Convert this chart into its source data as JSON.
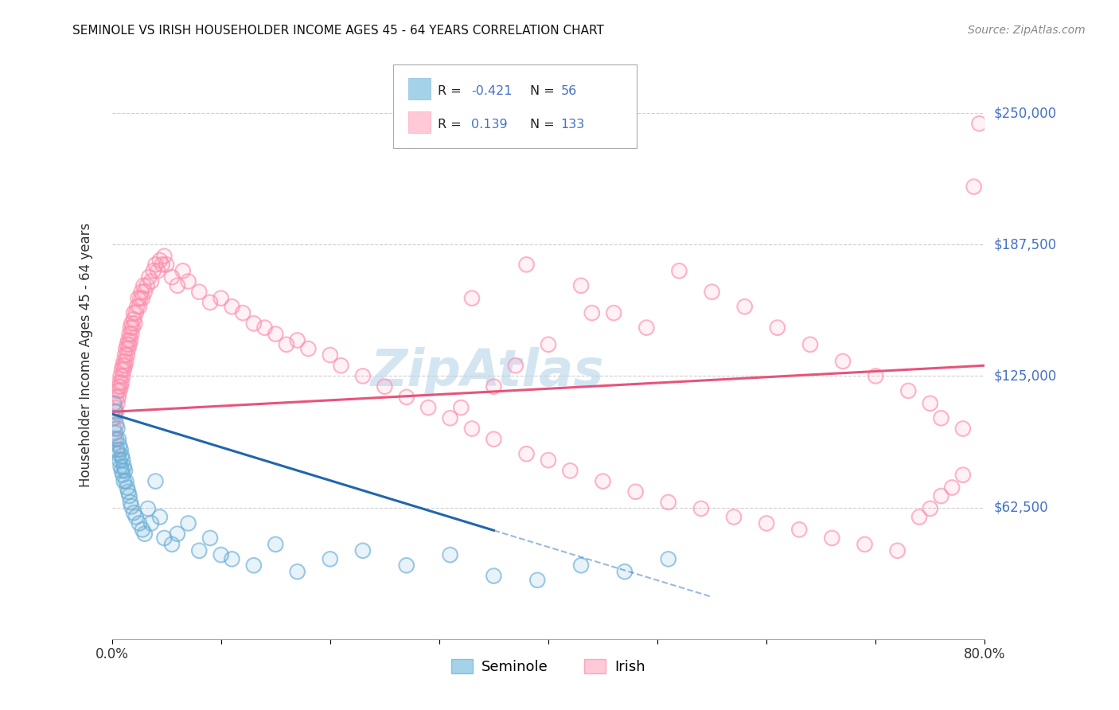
{
  "title": "SEMINOLE VS IRISH HOUSEHOLDER INCOME AGES 45 - 64 YEARS CORRELATION CHART",
  "source": "Source: ZipAtlas.com",
  "ylabel": "Householder Income Ages 45 - 64 years",
  "xlim": [
    0.0,
    0.8
  ],
  "ylim": [
    0,
    270000
  ],
  "yticks": [
    0,
    62500,
    125000,
    187500,
    250000
  ],
  "ytick_labels": [
    "",
    "$62,500",
    "$125,000",
    "$187,500",
    "$250,000"
  ],
  "xticks": [
    0.0,
    0.1,
    0.2,
    0.3,
    0.4,
    0.5,
    0.6,
    0.7,
    0.8
  ],
  "xtick_labels": [
    "0.0%",
    "",
    "",
    "",
    "",
    "",
    "",
    "",
    "80.0%"
  ],
  "seminole_color": "#7fbfdf",
  "irish_color": "#ffb3c8",
  "seminole_edge_color": "#6baed6",
  "irish_edge_color": "#fc8eac",
  "seminole_line_color": "#2166ac",
  "irish_line_color": "#e8537a",
  "watermark": "ZipAtlas",
  "seminole_x": [
    0.001,
    0.002,
    0.003,
    0.003,
    0.004,
    0.004,
    0.005,
    0.005,
    0.006,
    0.006,
    0.007,
    0.007,
    0.008,
    0.008,
    0.009,
    0.009,
    0.01,
    0.01,
    0.011,
    0.011,
    0.012,
    0.013,
    0.014,
    0.015,
    0.016,
    0.017,
    0.018,
    0.02,
    0.022,
    0.025,
    0.028,
    0.03,
    0.033,
    0.036,
    0.04,
    0.044,
    0.048,
    0.055,
    0.06,
    0.07,
    0.08,
    0.09,
    0.1,
    0.11,
    0.13,
    0.15,
    0.17,
    0.2,
    0.23,
    0.27,
    0.31,
    0.35,
    0.39,
    0.43,
    0.47,
    0.51
  ],
  "seminole_y": [
    105000,
    112000,
    98000,
    108000,
    95000,
    102000,
    90000,
    100000,
    88000,
    95000,
    85000,
    92000,
    82000,
    90000,
    80000,
    87000,
    78000,
    85000,
    75000,
    82000,
    80000,
    75000,
    72000,
    70000,
    68000,
    65000,
    63000,
    60000,
    58000,
    55000,
    52000,
    50000,
    62000,
    55000,
    75000,
    58000,
    48000,
    45000,
    50000,
    55000,
    42000,
    48000,
    40000,
    38000,
    35000,
    45000,
    32000,
    38000,
    42000,
    35000,
    40000,
    30000,
    28000,
    35000,
    32000,
    38000
  ],
  "irish_x": [
    0.001,
    0.002,
    0.002,
    0.003,
    0.003,
    0.004,
    0.004,
    0.005,
    0.005,
    0.006,
    0.006,
    0.007,
    0.007,
    0.008,
    0.008,
    0.009,
    0.009,
    0.01,
    0.01,
    0.011,
    0.011,
    0.012,
    0.012,
    0.013,
    0.013,
    0.014,
    0.014,
    0.015,
    0.015,
    0.016,
    0.016,
    0.017,
    0.017,
    0.018,
    0.018,
    0.019,
    0.02,
    0.02,
    0.021,
    0.022,
    0.023,
    0.024,
    0.025,
    0.026,
    0.027,
    0.028,
    0.029,
    0.03,
    0.032,
    0.034,
    0.036,
    0.038,
    0.04,
    0.042,
    0.044,
    0.046,
    0.048,
    0.05,
    0.055,
    0.06,
    0.065,
    0.07,
    0.08,
    0.09,
    0.1,
    0.11,
    0.12,
    0.13,
    0.14,
    0.15,
    0.16,
    0.17,
    0.18,
    0.2,
    0.21,
    0.23,
    0.25,
    0.27,
    0.29,
    0.31,
    0.33,
    0.35,
    0.38,
    0.4,
    0.42,
    0.45,
    0.48,
    0.51,
    0.54,
    0.57,
    0.6,
    0.63,
    0.66,
    0.69,
    0.72,
    0.74,
    0.75,
    0.76,
    0.77,
    0.78,
    0.33,
    0.38,
    0.43,
    0.46,
    0.49,
    0.32,
    0.35,
    0.37,
    0.4,
    0.44,
    0.52,
    0.55,
    0.58,
    0.61,
    0.64,
    0.67,
    0.7,
    0.73,
    0.75,
    0.76,
    0.78,
    0.79,
    0.795
  ],
  "irish_y": [
    90000,
    95000,
    100000,
    105000,
    110000,
    108000,
    115000,
    112000,
    118000,
    115000,
    120000,
    118000,
    122000,
    120000,
    125000,
    122000,
    128000,
    125000,
    130000,
    128000,
    132000,
    130000,
    135000,
    132000,
    138000,
    135000,
    140000,
    138000,
    142000,
    140000,
    145000,
    142000,
    148000,
    145000,
    150000,
    148000,
    152000,
    155000,
    150000,
    155000,
    158000,
    162000,
    158000,
    162000,
    165000,
    162000,
    168000,
    165000,
    168000,
    172000,
    170000,
    175000,
    178000,
    175000,
    180000,
    178000,
    182000,
    178000,
    172000,
    168000,
    175000,
    170000,
    165000,
    160000,
    162000,
    158000,
    155000,
    150000,
    148000,
    145000,
    140000,
    142000,
    138000,
    135000,
    130000,
    125000,
    120000,
    115000,
    110000,
    105000,
    100000,
    95000,
    88000,
    85000,
    80000,
    75000,
    70000,
    65000,
    62000,
    58000,
    55000,
    52000,
    48000,
    45000,
    42000,
    58000,
    62000,
    68000,
    72000,
    78000,
    162000,
    178000,
    168000,
    155000,
    148000,
    110000,
    120000,
    130000,
    140000,
    155000,
    175000,
    165000,
    158000,
    148000,
    140000,
    132000,
    125000,
    118000,
    112000,
    105000,
    100000,
    215000,
    245000
  ],
  "irish_trend_x0": 0.0,
  "irish_trend_y0": 108000,
  "irish_trend_x1": 0.8,
  "irish_trend_y1": 130000,
  "sem_trend_x0": 0.0,
  "sem_trend_y0": 107000,
  "sem_trend_x1": 0.55,
  "sem_trend_y1": 20000
}
